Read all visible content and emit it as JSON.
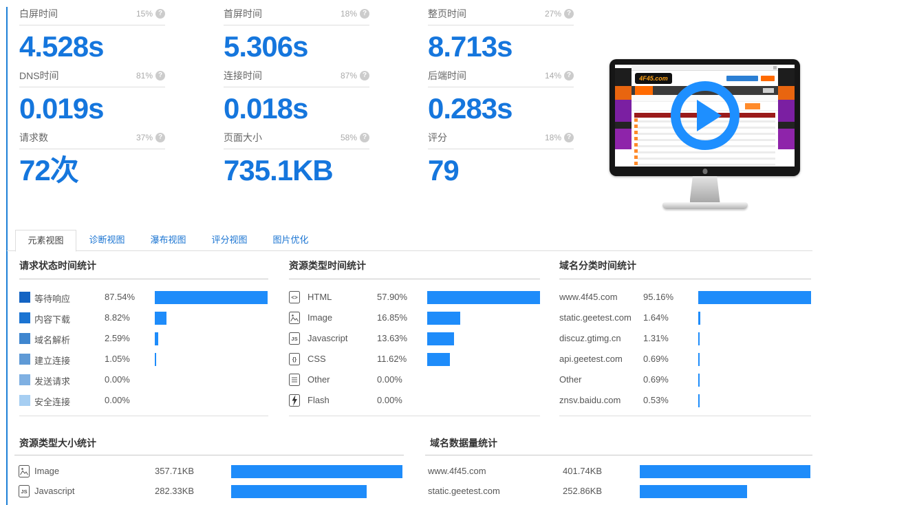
{
  "colors": {
    "bar_blue": "#1e8cfa",
    "value_blue": "#1576dd",
    "accent_line_blue": "#1c7fd6",
    "tab_blue": "#1a74d2",
    "play_blue": "#1e8fff"
  },
  "icons": {
    "help_glyph": "?"
  },
  "metrics": [
    {
      "label": "白屏时间",
      "percentile": "15%",
      "value": "4.528s"
    },
    {
      "label": "首屏时间",
      "percentile": "18%",
      "value": "5.306s"
    },
    {
      "label": "整页时间",
      "percentile": "27%",
      "value": "8.713s"
    },
    {
      "label": "DNS时间",
      "percentile": "81%",
      "value": "0.019s"
    },
    {
      "label": "连接时间",
      "percentile": "87%",
      "value": "0.018s"
    },
    {
      "label": "后端时间",
      "percentile": "14%",
      "value": "0.283s"
    },
    {
      "label": "请求数",
      "percentile": "37%",
      "value": "72次"
    },
    {
      "label": "页面大小",
      "percentile": "58%",
      "value": "735.1KB"
    },
    {
      "label": "评分",
      "percentile": "18%",
      "value": "79"
    }
  ],
  "preview": {
    "site_logo": "4F45.com"
  },
  "tabs": [
    {
      "label": "元素视图",
      "name": "tab-element-view",
      "active": true
    },
    {
      "label": "诊断视图",
      "name": "tab-diagnostic-view",
      "active": false
    },
    {
      "label": "瀑布视图",
      "name": "tab-waterfall-view",
      "active": false
    },
    {
      "label": "评分视图",
      "name": "tab-score-view",
      "active": false
    },
    {
      "label": "图片优化",
      "name": "tab-image-optimization",
      "active": false
    }
  ],
  "panels": {
    "request_status": {
      "title": "请求状态时间统计",
      "items": [
        {
          "label": "等待响应",
          "display": "87.54%",
          "value": 87.54,
          "swatch": "#1464c3"
        },
        {
          "label": "内容下载",
          "display": "8.82%",
          "value": 8.82,
          "swatch": "#1b74d2"
        },
        {
          "label": "域名解析",
          "display": "2.59%",
          "value": 2.59,
          "swatch": "#3f86cf"
        },
        {
          "label": "建立连接",
          "display": "1.05%",
          "value": 1.05,
          "swatch": "#5f9ad6"
        },
        {
          "label": "发送请求",
          "display": "0.00%",
          "value": 0,
          "swatch": "#7fb0e2"
        },
        {
          "label": "安全连接",
          "display": "0.00%",
          "value": 0,
          "swatch": "#a6cef2"
        }
      ]
    },
    "resource_time": {
      "title": "资源类型时间统计",
      "items": [
        {
          "label": "HTML",
          "display": "57.90%",
          "value": 57.9,
          "icon": "html-icon"
        },
        {
          "label": "Image",
          "display": "16.85%",
          "value": 16.85,
          "icon": "image-icon"
        },
        {
          "label": "Javascript",
          "display": "13.63%",
          "value": 13.63,
          "icon": "javascript-icon"
        },
        {
          "label": "CSS",
          "display": "11.62%",
          "value": 11.62,
          "icon": "css-icon"
        },
        {
          "label": "Other",
          "display": "0.00%",
          "value": 0,
          "icon": "other-icon"
        },
        {
          "label": "Flash",
          "display": "0.00%",
          "value": 0,
          "icon": "flash-icon"
        }
      ]
    },
    "domain_time": {
      "title": "域名分类时间统计",
      "items": [
        {
          "label": "www.4f45.com",
          "display": "95.16%",
          "value": 95.16
        },
        {
          "label": "static.geetest.com",
          "display": "1.64%",
          "value": 1.64
        },
        {
          "label": "discuz.gtimg.cn",
          "display": "1.31%",
          "value": 1.31
        },
        {
          "label": "api.geetest.com",
          "display": "0.69%",
          "value": 0.69
        },
        {
          "label": "Other",
          "display": "0.69%",
          "value": 0.69
        },
        {
          "label": "znsv.baidu.com",
          "display": "0.53%",
          "value": 0.53
        }
      ]
    },
    "resource_size": {
      "title": "资源类型大小统计",
      "items": [
        {
          "label": "Image",
          "display": "357.71KB",
          "value": 357.71,
          "icon": "image-icon"
        },
        {
          "label": "Javascript",
          "display": "282.33KB",
          "value": 282.33,
          "icon": "javascript-icon"
        }
      ]
    },
    "domain_size": {
      "title": "域名数据量统计",
      "items": [
        {
          "label": "www.4f45.com",
          "display": "401.74KB",
          "value": 401.74
        },
        {
          "label": "static.geetest.com",
          "display": "252.86KB",
          "value": 252.86
        }
      ]
    }
  }
}
